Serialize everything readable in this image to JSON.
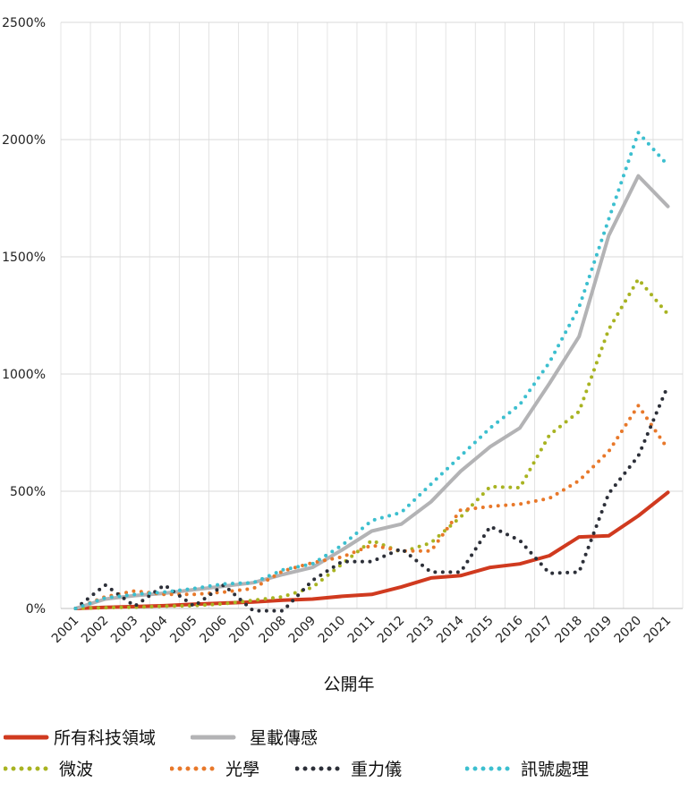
{
  "chart_data": {
    "type": "line",
    "xlabel": "公開年",
    "ylabel": "",
    "ylim": [
      0,
      2500
    ],
    "y_ticks": [
      0,
      500,
      1000,
      1500,
      2000,
      2500
    ],
    "y_tick_labels": [
      "0%",
      "500%",
      "1000%",
      "1500%",
      "2000%",
      "2500%"
    ],
    "x": [
      "2001",
      "2002",
      "2003",
      "2004",
      "2005",
      "2006",
      "2007",
      "2008",
      "2009",
      "2010",
      "2011",
      "2012",
      "2013",
      "2014",
      "2015",
      "2016",
      "2017",
      "2018",
      "2019",
      "2020",
      "2021"
    ],
    "grid": "vertical and horizontal",
    "legend_position": "bottom",
    "series": [
      {
        "name": "所有科技領域",
        "color": "#d03a1f",
        "style": "solid",
        "width": 4,
        "values": [
          0,
          5,
          8,
          12,
          18,
          23,
          28,
          35,
          40,
          52,
          60,
          92,
          130,
          140,
          175,
          190,
          225,
          305,
          310,
          395,
          495
        ]
      },
      {
        "name": "星載傳感",
        "color": "#b3b3b5",
        "style": "solid",
        "width": 4,
        "values": [
          0,
          40,
          55,
          65,
          80,
          95,
          110,
          145,
          175,
          250,
          330,
          360,
          455,
          585,
          690,
          770,
          960,
          1160,
          1590,
          1845,
          1715
        ]
      },
      {
        "name": "微波",
        "color": "#a8b321",
        "style": "dotted",
        "values": [
          0,
          3,
          5,
          10,
          12,
          20,
          35,
          50,
          90,
          190,
          290,
          240,
          280,
          390,
          520,
          515,
          740,
          840,
          1190,
          1405,
          1255
        ]
      },
      {
        "name": "光學",
        "color": "#e8782a",
        "style": "dotted",
        "values": [
          0,
          50,
          75,
          60,
          60,
          70,
          85,
          160,
          195,
          220,
          270,
          245,
          245,
          420,
          435,
          445,
          470,
          545,
          670,
          865,
          680
        ]
      },
      {
        "name": "重力儀",
        "color": "#2c2f38",
        "style": "dotted",
        "values": [
          0,
          100,
          10,
          100,
          10,
          100,
          -10,
          -10,
          120,
          200,
          200,
          255,
          155,
          155,
          350,
          290,
          150,
          155,
          490,
          650,
          950
        ]
      },
      {
        "name": "訊號處理",
        "color": "#3cbfcf",
        "style": "dotted",
        "values": [
          0,
          45,
          60,
          70,
          85,
          105,
          110,
          165,
          190,
          270,
          375,
          410,
          530,
          650,
          770,
          870,
          1050,
          1285,
          1660,
          2030,
          1890
        ]
      }
    ]
  }
}
